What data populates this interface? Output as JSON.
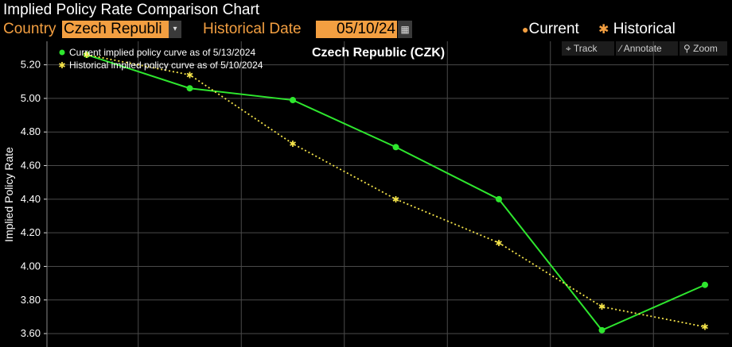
{
  "header": {
    "title": "Implied Policy Rate Comparison Chart"
  },
  "controls": {
    "country_label": "Country",
    "country_value": "Czech Republi",
    "historical_date_label": "Historical Date",
    "historical_date_value": "05/10/24",
    "legend_current": "Current",
    "legend_historical": "Historical"
  },
  "toolbar": {
    "track": "Track",
    "annotate": "Annotate",
    "zoom": "Zoom"
  },
  "icons": {
    "dropdown": "chevron-down-icon",
    "calendar": "calendar-icon",
    "track": "crosshair-icon",
    "annotate": "pencil-icon",
    "zoom": "magnifier-icon"
  },
  "colors": {
    "current": "#2ee62e",
    "historical": "#f5e44a",
    "accent": "#f39f41",
    "grid": "#4a4a4a"
  },
  "chart_data": {
    "type": "line",
    "title": "Czech Republic (CZK)",
    "ylabel": "Implied Policy Rate",
    "xlabel": "",
    "ylim": [
      3.52,
      5.34
    ],
    "yticks": [
      "5.20",
      "5.00",
      "4.80",
      "4.60",
      "4.40",
      "4.20",
      "4.00",
      "3.80",
      "3.60"
    ],
    "grid": true,
    "legend_position": "top-left",
    "series": [
      {
        "name": "Current implied policy curve as of 5/13/2024",
        "marker": "dot",
        "values": [
          5.26,
          5.06,
          4.99,
          4.71,
          4.4,
          3.62,
          3.89
        ]
      },
      {
        "name": "Historical implied policy curve as of 5/10/2024",
        "marker": "star",
        "values": [
          5.26,
          5.14,
          4.73,
          4.4,
          4.14,
          3.76,
          3.64
        ]
      }
    ]
  }
}
